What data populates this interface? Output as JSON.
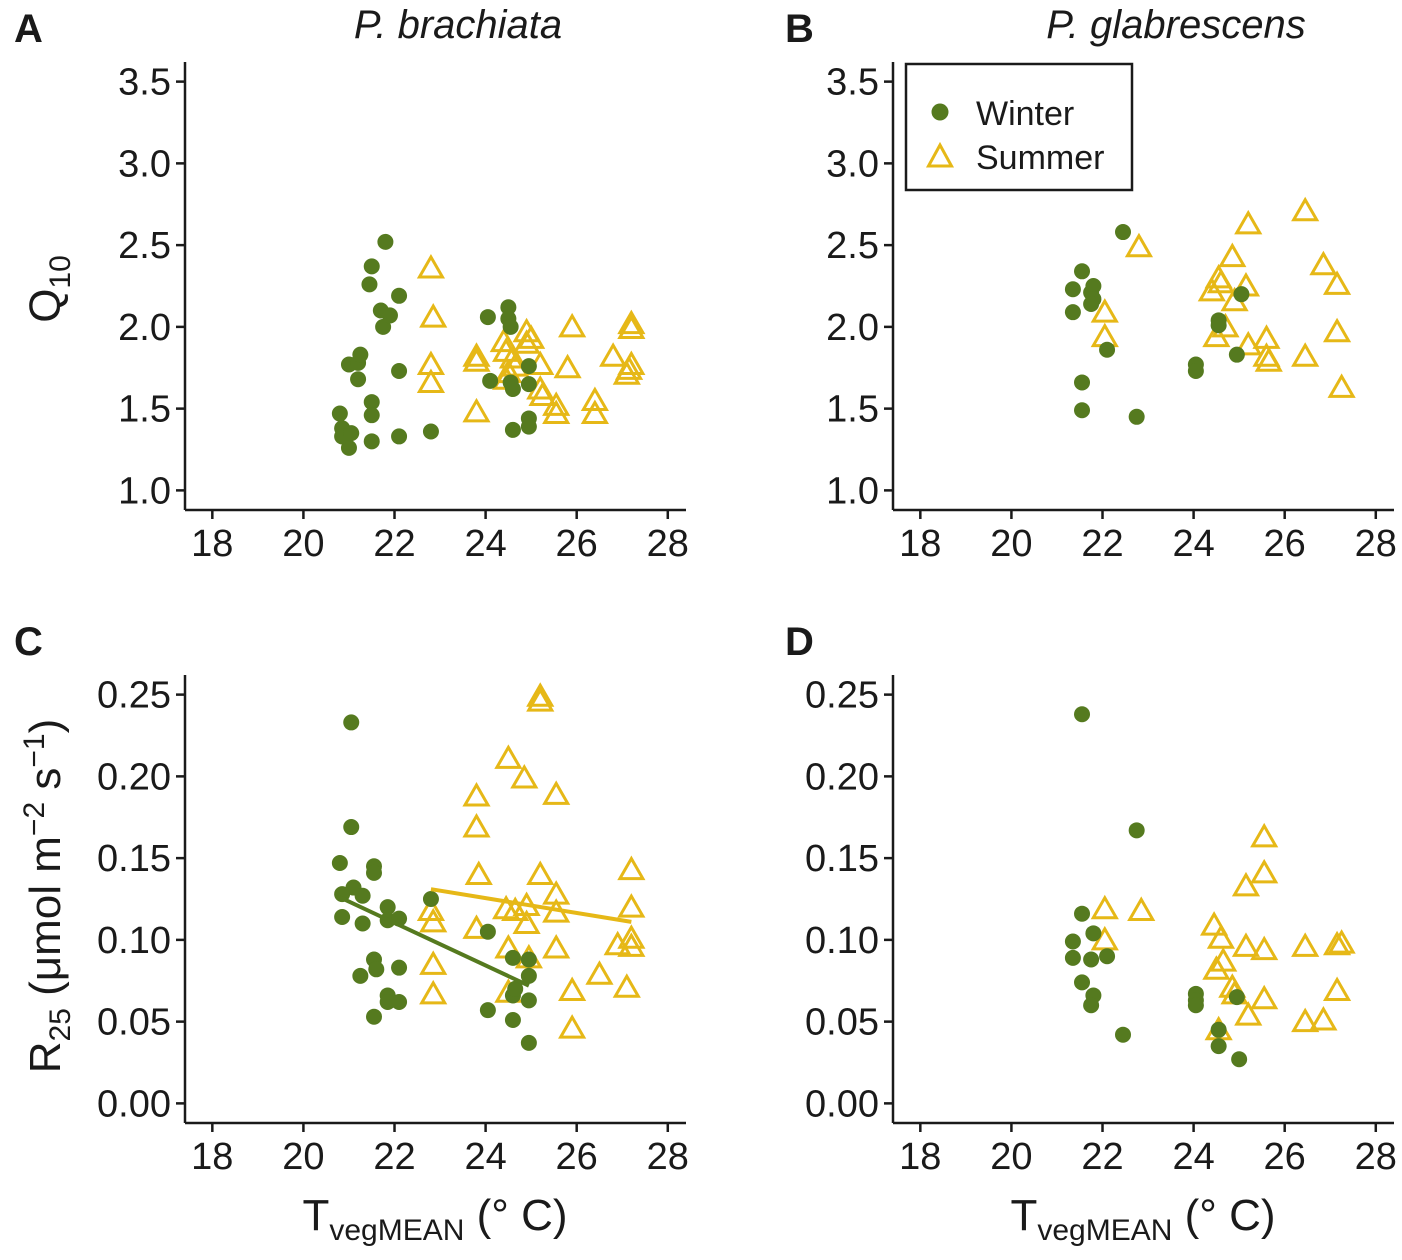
{
  "colors": {
    "winter": "#557a1f",
    "summer": "#e6b817",
    "axis": "#1a1a1a"
  },
  "legend": {
    "entries": [
      {
        "label": "Winter",
        "color": "#557a1f",
        "marker": "filled-circle"
      },
      {
        "label": "Summer",
        "color": "#e6b817",
        "marker": "open-triangle"
      }
    ]
  },
  "axes": {
    "q10_ylabel_base": "Q",
    "q10_ylabel_sub": "10",
    "r25_ylabel_base": "R",
    "r25_ylabel_sub": "25",
    "r25_ylabel_unit_a": " (μmol m",
    "r25_ylabel_exp1": "−2",
    "r25_ylabel_unit_b": " s",
    "r25_ylabel_exp2": "−1",
    "r25_ylabel_close": ")",
    "xlabel_base": "T",
    "xlabel_sub": "vegMEAN",
    "xlabel_unit": " (° C)"
  },
  "chart_data": [
    {
      "panel": "A",
      "title": "P. brachiata",
      "type": "scatter",
      "xlabel": "TvegMEAN (° C)",
      "ylabel": "Q10",
      "xlim": [
        17.4,
        28.4
      ],
      "ylim": [
        0.88,
        3.62
      ],
      "xticks": [
        18,
        20,
        22,
        24,
        26,
        28
      ],
      "xtick_labels": [
        "18",
        "20",
        "22",
        "24",
        "26",
        "28"
      ],
      "yticks": [
        1.0,
        1.5,
        2.0,
        2.5,
        3.0,
        3.5
      ],
      "ytick_labels": [
        "1.0",
        "1.5",
        "2.0",
        "2.5",
        "3.0",
        "3.5"
      ],
      "series": [
        {
          "name": "Winter",
          "points": [
            [
              20.8,
              1.47
            ],
            [
              20.85,
              1.38
            ],
            [
              20.85,
              1.33
            ],
            [
              21.0,
              1.26
            ],
            [
              21.05,
              1.35
            ],
            [
              21.0,
              1.77
            ],
            [
              21.2,
              1.78
            ],
            [
              21.25,
              1.83
            ],
            [
              21.2,
              1.68
            ],
            [
              21.5,
              2.37
            ],
            [
              21.45,
              2.26
            ],
            [
              21.5,
              1.54
            ],
            [
              21.5,
              1.46
            ],
            [
              21.5,
              1.3
            ],
            [
              21.7,
              2.1
            ],
            [
              21.75,
              2.0
            ],
            [
              21.8,
              2.52
            ],
            [
              21.9,
              2.07
            ],
            [
              22.1,
              2.19
            ],
            [
              22.1,
              1.73
            ],
            [
              22.1,
              1.33
            ],
            [
              22.8,
              1.36
            ],
            [
              24.05,
              2.06
            ],
            [
              24.1,
              1.67
            ],
            [
              24.5,
              2.12
            ],
            [
              24.5,
              2.05
            ],
            [
              24.55,
              2.0
            ],
            [
              24.55,
              1.66
            ],
            [
              24.6,
              1.62
            ],
            [
              24.6,
              1.37
            ],
            [
              24.95,
              1.76
            ],
            [
              24.95,
              1.65
            ],
            [
              24.95,
              1.44
            ],
            [
              24.95,
              1.39
            ]
          ]
        },
        {
          "name": "Summer",
          "points": [
            [
              22.8,
              2.36
            ],
            [
              22.85,
              2.06
            ],
            [
              22.8,
              1.77
            ],
            [
              22.8,
              1.66
            ],
            [
              23.8,
              1.82
            ],
            [
              23.8,
              1.79
            ],
            [
              23.8,
              1.48
            ],
            [
              24.4,
              1.91
            ],
            [
              24.45,
              1.85
            ],
            [
              24.5,
              1.72
            ],
            [
              24.45,
              1.68
            ],
            [
              24.6,
              1.81
            ],
            [
              24.65,
              1.76
            ],
            [
              24.9,
              1.97
            ],
            [
              24.9,
              1.9
            ],
            [
              25.0,
              1.93
            ],
            [
              25.2,
              1.77
            ],
            [
              25.2,
              1.62
            ],
            [
              25.25,
              1.58
            ],
            [
              25.55,
              1.52
            ],
            [
              25.55,
              1.47
            ],
            [
              25.8,
              1.75
            ],
            [
              25.9,
              2.0
            ],
            [
              26.4,
              1.55
            ],
            [
              26.4,
              1.47
            ],
            [
              26.8,
              1.82
            ],
            [
              27.1,
              1.71
            ],
            [
              27.15,
              1.74
            ],
            [
              27.2,
              1.99
            ],
            [
              27.2,
              2.02
            ],
            [
              27.2,
              1.77
            ]
          ]
        }
      ],
      "fit_lines": []
    },
    {
      "panel": "B",
      "title": "P. glabrescens",
      "type": "scatter",
      "xlabel": "TvegMEAN (° C)",
      "ylabel": "Q10",
      "xlim": [
        17.4,
        28.4
      ],
      "ylim": [
        0.88,
        3.62
      ],
      "xticks": [
        18,
        20,
        22,
        24,
        26,
        28
      ],
      "xtick_labels": [
        "18",
        "20",
        "22",
        "24",
        "26",
        "28"
      ],
      "yticks": [
        1.0,
        1.5,
        2.0,
        2.5,
        3.0,
        3.5
      ],
      "ytick_labels": [
        "1.0",
        "1.5",
        "2.0",
        "2.5",
        "3.0",
        "3.5"
      ],
      "series": [
        {
          "name": "Winter",
          "points": [
            [
              21.35,
              2.23
            ],
            [
              21.35,
              2.09
            ],
            [
              21.55,
              2.34
            ],
            [
              21.55,
              1.66
            ],
            [
              21.55,
              1.49
            ],
            [
              21.75,
              2.21
            ],
            [
              21.8,
              2.25
            ],
            [
              21.8,
              2.17
            ],
            [
              21.75,
              2.14
            ],
            [
              22.1,
              1.86
            ],
            [
              22.45,
              2.58
            ],
            [
              22.75,
              1.45
            ],
            [
              24.05,
              1.77
            ],
            [
              24.05,
              1.73
            ],
            [
              24.55,
              2.04
            ],
            [
              24.55,
              2.01
            ],
            [
              24.95,
              1.83
            ],
            [
              25.05,
              2.2
            ]
          ]
        },
        {
          "name": "Summer",
          "points": [
            [
              22.05,
              2.09
            ],
            [
              22.05,
              1.94
            ],
            [
              22.8,
              2.49
            ],
            [
              24.4,
              2.22
            ],
            [
              24.5,
              1.94
            ],
            [
              24.55,
              2.3
            ],
            [
              24.6,
              2.27
            ],
            [
              24.7,
              2.0
            ],
            [
              24.85,
              2.43
            ],
            [
              24.9,
              2.16
            ],
            [
              25.15,
              2.25
            ],
            [
              25.2,
              2.63
            ],
            [
              25.2,
              1.89
            ],
            [
              25.6,
              1.93
            ],
            [
              25.6,
              1.82
            ],
            [
              25.65,
              1.79
            ],
            [
              26.45,
              2.71
            ],
            [
              26.45,
              1.82
            ],
            [
              26.85,
              2.38
            ],
            [
              27.15,
              2.26
            ],
            [
              27.15,
              1.97
            ],
            [
              27.25,
              1.63
            ]
          ]
        }
      ],
      "fit_lines": []
    },
    {
      "panel": "C",
      "title": "",
      "type": "scatter",
      "xlabel": "TvegMEAN (° C)",
      "ylabel": "R25 (μmol m−2 s−1)",
      "xlim": [
        17.4,
        28.4
      ],
      "ylim": [
        -0.012,
        0.262
      ],
      "xticks": [
        18,
        20,
        22,
        24,
        26,
        28
      ],
      "xtick_labels": [
        "18",
        "20",
        "22",
        "24",
        "26",
        "28"
      ],
      "yticks": [
        0.0,
        0.05,
        0.1,
        0.15,
        0.2,
        0.25
      ],
      "ytick_labels": [
        "0.00",
        "0.05",
        "0.10",
        "0.15",
        "0.20",
        "0.25"
      ],
      "series": [
        {
          "name": "Winter",
          "points": [
            [
              20.8,
              0.147
            ],
            [
              20.85,
              0.128
            ],
            [
              20.85,
              0.114
            ],
            [
              21.05,
              0.233
            ],
            [
              21.05,
              0.169
            ],
            [
              21.1,
              0.132
            ],
            [
              21.3,
              0.127
            ],
            [
              21.3,
              0.11
            ],
            [
              21.25,
              0.078
            ],
            [
              21.55,
              0.145
            ],
            [
              21.55,
              0.141
            ],
            [
              21.55,
              0.088
            ],
            [
              21.6,
              0.082
            ],
            [
              21.55,
              0.053
            ],
            [
              21.85,
              0.12
            ],
            [
              21.85,
              0.112
            ],
            [
              21.85,
              0.066
            ],
            [
              21.85,
              0.062
            ],
            [
              22.1,
              0.113
            ],
            [
              22.1,
              0.083
            ],
            [
              22.1,
              0.062
            ],
            [
              22.8,
              0.125
            ],
            [
              24.05,
              0.105
            ],
            [
              24.05,
              0.057
            ],
            [
              24.6,
              0.089
            ],
            [
              24.6,
              0.066
            ],
            [
              24.6,
              0.051
            ],
            [
              24.65,
              0.07
            ],
            [
              24.95,
              0.088
            ],
            [
              24.95,
              0.078
            ],
            [
              24.95,
              0.063
            ],
            [
              24.95,
              0.037
            ]
          ]
        },
        {
          "name": "Summer",
          "points": [
            [
              22.8,
              0.118
            ],
            [
              22.85,
              0.111
            ],
            [
              22.85,
              0.085
            ],
            [
              22.85,
              0.067
            ],
            [
              23.8,
              0.188
            ],
            [
              23.8,
              0.169
            ],
            [
              23.85,
              0.14
            ],
            [
              23.8,
              0.107
            ],
            [
              24.5,
              0.211
            ],
            [
              24.45,
              0.119
            ],
            [
              24.5,
              0.095
            ],
            [
              24.5,
              0.068
            ],
            [
              24.65,
              0.118
            ],
            [
              24.85,
              0.199
            ],
            [
              24.9,
              0.121
            ],
            [
              24.9,
              0.11
            ],
            [
              24.95,
              0.089
            ],
            [
              25.2,
              0.249
            ],
            [
              25.2,
              0.246
            ],
            [
              25.2,
              0.14
            ],
            [
              25.55,
              0.189
            ],
            [
              25.55,
              0.128
            ],
            [
              25.55,
              0.117
            ],
            [
              25.55,
              0.095
            ],
            [
              25.9,
              0.069
            ],
            [
              25.9,
              0.046
            ],
            [
              26.5,
              0.079
            ],
            [
              26.9,
              0.097
            ],
            [
              27.1,
              0.071
            ],
            [
              27.2,
              0.143
            ],
            [
              27.2,
              0.12
            ],
            [
              27.2,
              0.101
            ],
            [
              27.2,
              0.096
            ]
          ]
        }
      ],
      "fit_lines": [
        {
          "series": "Winter",
          "x": [
            20.8,
            24.95
          ],
          "y": [
            0.126,
            0.072
          ]
        },
        {
          "series": "Summer",
          "x": [
            22.8,
            27.2
          ],
          "y": [
            0.131,
            0.111
          ]
        }
      ]
    },
    {
      "panel": "D",
      "title": "",
      "type": "scatter",
      "xlabel": "TvegMEAN (° C)",
      "ylabel": "R25 (μmol m−2 s−1)",
      "xlim": [
        17.4,
        28.4
      ],
      "ylim": [
        -0.012,
        0.262
      ],
      "xticks": [
        18,
        20,
        22,
        24,
        26,
        28
      ],
      "xtick_labels": [
        "18",
        "20",
        "22",
        "24",
        "26",
        "28"
      ],
      "yticks": [
        0.0,
        0.05,
        0.1,
        0.15,
        0.2,
        0.25
      ],
      "ytick_labels": [
        "0.00",
        "0.05",
        "0.10",
        "0.15",
        "0.20",
        "0.25"
      ],
      "series": [
        {
          "name": "Winter",
          "points": [
            [
              21.35,
              0.099
            ],
            [
              21.35,
              0.089
            ],
            [
              21.55,
              0.238
            ],
            [
              21.55,
              0.116
            ],
            [
              21.55,
              0.074
            ],
            [
              21.75,
              0.088
            ],
            [
              21.8,
              0.104
            ],
            [
              21.8,
              0.066
            ],
            [
              21.75,
              0.06
            ],
            [
              22.1,
              0.09
            ],
            [
              22.45,
              0.042
            ],
            [
              22.75,
              0.167
            ],
            [
              24.05,
              0.067
            ],
            [
              24.05,
              0.063
            ],
            [
              24.05,
              0.06
            ],
            [
              24.55,
              0.045
            ],
            [
              24.55,
              0.035
            ],
            [
              24.95,
              0.065
            ],
            [
              25.0,
              0.027
            ]
          ]
        },
        {
          "name": "Summer",
          "points": [
            [
              22.05,
              0.119
            ],
            [
              22.05,
              0.1
            ],
            [
              22.85,
              0.118
            ],
            [
              24.45,
              0.109
            ],
            [
              24.5,
              0.082
            ],
            [
              24.55,
              0.045
            ],
            [
              24.6,
              0.101
            ],
            [
              24.65,
              0.087
            ],
            [
              24.85,
              0.071
            ],
            [
              24.9,
              0.067
            ],
            [
              25.15,
              0.133
            ],
            [
              25.15,
              0.096
            ],
            [
              25.2,
              0.054
            ],
            [
              25.55,
              0.163
            ],
            [
              25.55,
              0.141
            ],
            [
              25.55,
              0.094
            ],
            [
              25.55,
              0.064
            ],
            [
              26.45,
              0.096
            ],
            [
              26.45,
              0.05
            ],
            [
              26.85,
              0.051
            ],
            [
              27.15,
              0.097
            ],
            [
              27.15,
              0.069
            ],
            [
              27.25,
              0.098
            ]
          ]
        }
      ],
      "fit_lines": []
    }
  ]
}
